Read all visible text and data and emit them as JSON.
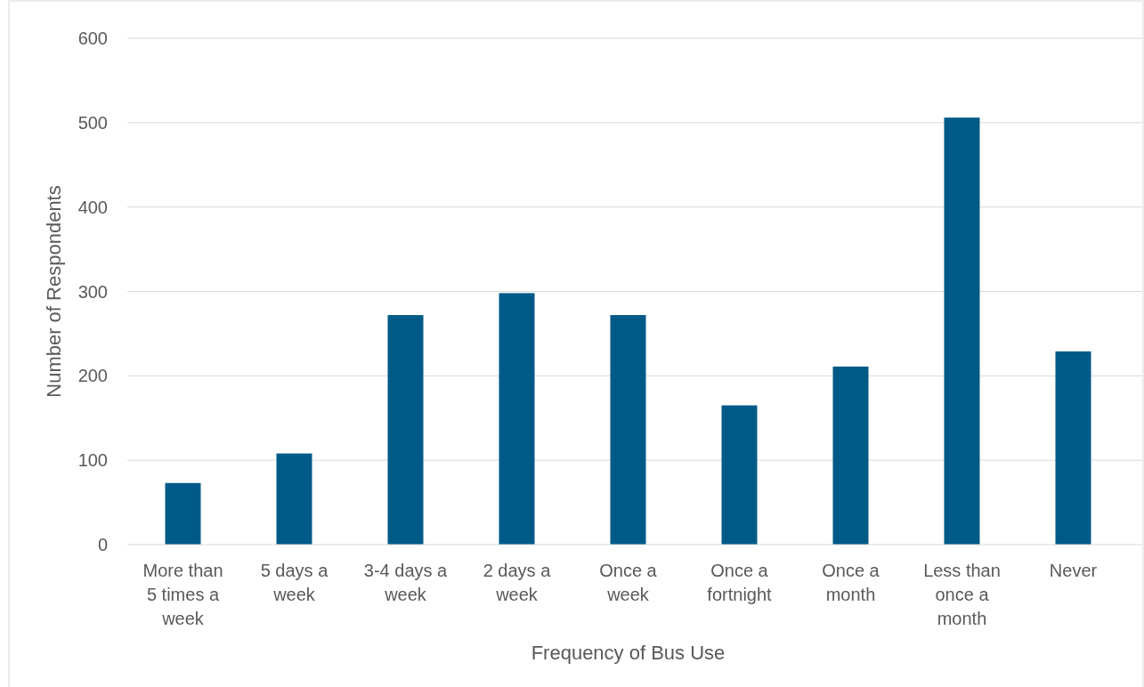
{
  "chart_data": {
    "type": "bar",
    "xlabel": "Frequency of Bus Use",
    "ylabel": "Number of Respondents",
    "categories": [
      "More than 5 times a week",
      "5 days a week",
      "3-4 days a week",
      "2 days a week",
      "Once a week",
      "Once a fortnight",
      "Once a month",
      "Less than once a month",
      "Never"
    ],
    "values": [
      73,
      108,
      272,
      298,
      272,
      165,
      211,
      506,
      229
    ],
    "color": "#005a87",
    "ylim": [
      0,
      600
    ],
    "yticks": [
      0,
      100,
      200,
      300,
      400,
      500,
      600
    ],
    "grid": "y"
  }
}
